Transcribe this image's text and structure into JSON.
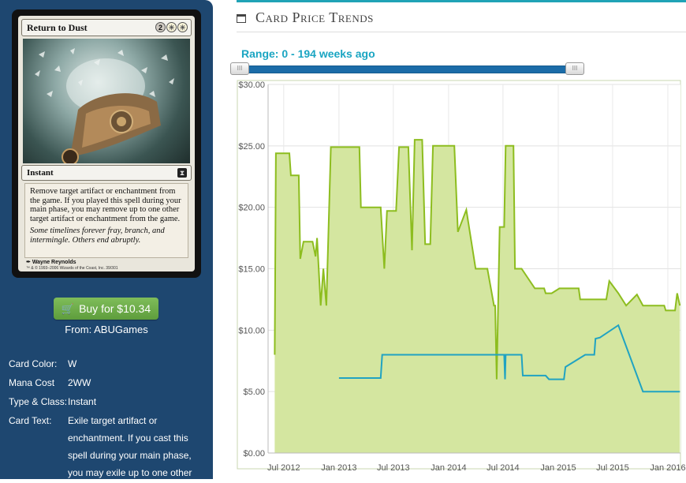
{
  "card": {
    "name": "Return to Dust",
    "mana_symbols": [
      "2",
      "W",
      "W"
    ],
    "type_line": "Instant",
    "rules_text": "Remove target artifact or enchantment from the game. If you played this spell during your main phase, you may remove up to one other target artifact or enchantment from the game.",
    "flavor_text": "Some timelines forever fray, branch, and intermingle. Others end abruptly.",
    "artist": "Wayne Reynolds",
    "copyright": "™ & © 1993–2006 Wizards of the Coast, Inc. 39/301"
  },
  "buy": {
    "label": "Buy for $10.34",
    "from": "From: ABUGames"
  },
  "info": [
    {
      "label": "Card Color:",
      "value": "W"
    },
    {
      "label": "Mana Cost",
      "value": "2WW"
    },
    {
      "label": "Type & Class:",
      "value": "Instant"
    },
    {
      "label": "Card Text:",
      "value": "Exile target artifact or enchantment. If you cast this spell during your main phase, you may exile up to one other"
    }
  ],
  "header": {
    "title": "Card Price Trends"
  },
  "range": {
    "text": "Range: 0 - 194 weeks ago"
  },
  "colors": {
    "sidebar": "#1e4770",
    "button": "#6aaa47",
    "accent": "#20a3b6",
    "area_fill": "#d4e6a0",
    "area_line": "#8dbd1f",
    "blue_line": "#20a3c2"
  },
  "chart_data": {
    "type": "area",
    "ylim": [
      0,
      30
    ],
    "y_ticks": [
      "$0.00",
      "$5.00",
      "$10.00",
      "$15.00",
      "$20.00",
      "$25.00",
      "$30.00"
    ],
    "x_ticks": [
      "Jul 2012",
      "Jan 2013",
      "Jul 2013",
      "Jan 2014",
      "Jul 2014",
      "Jan 2015",
      "Jul 2015",
      "Jan 2016"
    ],
    "series": [
      {
        "points": [
          [
            "2012-06-01",
            8.0
          ],
          [
            "2012-06-05",
            24.4
          ],
          [
            "2012-07-20",
            24.4
          ],
          [
            "2012-07-25",
            22.6
          ],
          [
            "2012-08-20",
            22.6
          ],
          [
            "2012-08-25",
            15.8
          ],
          [
            "2012-09-05",
            17.2
          ],
          [
            "2012-10-05",
            17.2
          ],
          [
            "2012-10-15",
            16.0
          ],
          [
            "2012-10-20",
            17.5
          ],
          [
            "2012-11-01",
            12.0
          ],
          [
            "2012-11-10",
            15.0
          ],
          [
            "2012-11-20",
            12.0
          ],
          [
            "2012-12-05",
            24.9
          ],
          [
            "2013-03-10",
            24.9
          ],
          [
            "2013-03-15",
            20.0
          ],
          [
            "2013-05-20",
            20.0
          ],
          [
            "2013-06-01",
            15.0
          ],
          [
            "2013-06-10",
            19.7
          ],
          [
            "2013-07-10",
            19.7
          ],
          [
            "2013-07-20",
            24.9
          ],
          [
            "2013-08-20",
            24.9
          ],
          [
            "2013-09-01",
            16.5
          ],
          [
            "2013-09-10",
            25.5
          ],
          [
            "2013-10-05",
            25.5
          ],
          [
            "2013-10-15",
            17.0
          ],
          [
            "2013-11-01",
            17.0
          ],
          [
            "2013-11-10",
            25.0
          ],
          [
            "2014-01-20",
            25.0
          ],
          [
            "2014-02-01",
            18.0
          ],
          [
            "2014-03-01",
            19.8
          ],
          [
            "2014-04-01",
            15.0
          ],
          [
            "2014-05-01",
            15.0
          ],
          [
            "2014-05-10",
            15.0
          ],
          [
            "2014-06-01",
            12.0
          ],
          [
            "2014-06-05",
            12.0
          ],
          [
            "2014-06-10",
            6.0
          ],
          [
            "2014-06-20",
            18.4
          ],
          [
            "2014-07-05",
            18.4
          ],
          [
            "2014-07-10",
            25.0
          ],
          [
            "2014-08-05",
            25.0
          ],
          [
            "2014-08-10",
            15.0
          ],
          [
            "2014-09-01",
            15.0
          ],
          [
            "2014-10-15",
            13.4
          ],
          [
            "2014-11-15",
            13.4
          ],
          [
            "2014-11-20",
            13.0
          ],
          [
            "2014-12-10",
            13.0
          ],
          [
            "2015-01-05",
            13.4
          ],
          [
            "2015-03-10",
            13.4
          ],
          [
            "2015-03-15",
            12.5
          ],
          [
            "2015-06-10",
            12.5
          ],
          [
            "2015-06-20",
            14.0
          ],
          [
            "2015-07-20",
            13.0
          ],
          [
            "2015-08-15",
            12.0
          ],
          [
            "2015-09-20",
            12.9
          ],
          [
            "2015-10-10",
            12.0
          ],
          [
            "2015-12-20",
            12.0
          ],
          [
            "2015-12-25",
            11.6
          ],
          [
            "2016-01-25",
            11.6
          ],
          [
            "2016-02-01",
            13.0
          ],
          [
            "2016-02-10",
            12.0
          ]
        ]
      },
      {
        "points": [
          [
            "2013-01-01",
            6.1
          ],
          [
            "2013-05-20",
            6.1
          ],
          [
            "2013-05-25",
            8.0
          ],
          [
            "2014-07-05",
            8.0
          ],
          [
            "2014-07-08",
            6.0
          ],
          [
            "2014-07-10",
            8.0
          ],
          [
            "2014-09-01",
            8.0
          ],
          [
            "2014-09-05",
            6.3
          ],
          [
            "2014-11-20",
            6.3
          ],
          [
            "2014-12-01",
            6.0
          ],
          [
            "2015-01-20",
            6.0
          ],
          [
            "2015-01-25",
            7.0
          ],
          [
            "2015-04-01",
            8.0
          ],
          [
            "2015-05-01",
            8.0
          ],
          [
            "2015-05-05",
            9.3
          ],
          [
            "2015-05-20",
            9.4
          ],
          [
            "2015-07-20",
            10.4
          ],
          [
            "2015-10-10",
            5.0
          ],
          [
            "2016-02-10",
            5.0
          ]
        ]
      }
    ]
  }
}
